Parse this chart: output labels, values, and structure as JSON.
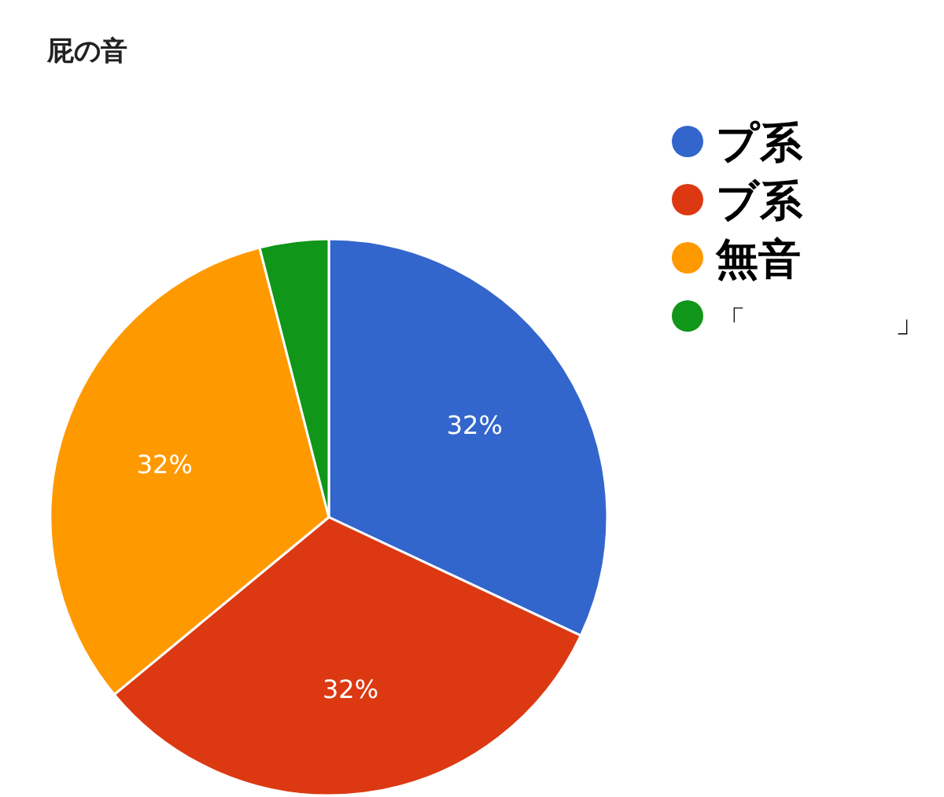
{
  "chart_data": {
    "type": "pie",
    "title": "屁の音",
    "categories": [
      "プ系",
      "ブ系",
      "無音",
      "「　　　　　」"
    ],
    "values": [
      32,
      32,
      32,
      4
    ],
    "colors": [
      "#3366cc",
      "#dc3912",
      "#ff9900",
      "#109618"
    ],
    "value_labels": [
      "32%",
      "32%",
      "32%",
      null
    ],
    "legend": "top right"
  }
}
